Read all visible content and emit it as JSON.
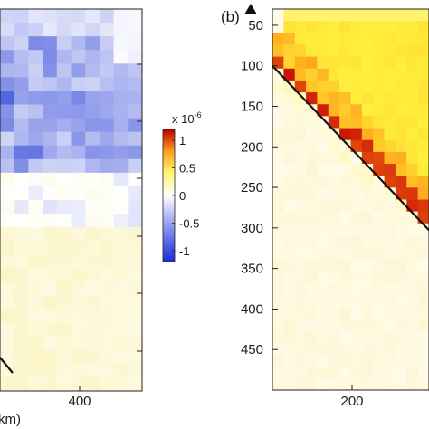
{
  "chart_data": [
    {
      "type": "heatmap",
      "panel": "a",
      "xlabel": "km)",
      "x_ticks": [
        "400"
      ],
      "y_ticks": [
        "",
        "",
        "",
        "",
        "",
        ""
      ],
      "colorbar": {
        "exponent_label": "x 10",
        "exponent_power": "-6",
        "ticks": [
          "1",
          "0.5",
          "0",
          "-0.5",
          "-1"
        ],
        "range": [
          -1.2,
          1.2
        ],
        "colormap": "blue-white-yellow-red"
      },
      "description_of_values": "negative (blue) in upper half, positive pale yellow in lower half"
    },
    {
      "type": "heatmap",
      "panel": "b",
      "title": "(b)",
      "x_ticks": [
        "200"
      ],
      "y_ticks": [
        "50",
        "100",
        "150",
        "200",
        "250",
        "300",
        "350",
        "400",
        "450"
      ],
      "ylim": [
        30,
        500
      ],
      "colormap": "white-yellow-red",
      "diagonal_line": {
        "from": [
          100,
          100
        ],
        "to": [
          300,
          300
        ]
      }
    }
  ]
}
